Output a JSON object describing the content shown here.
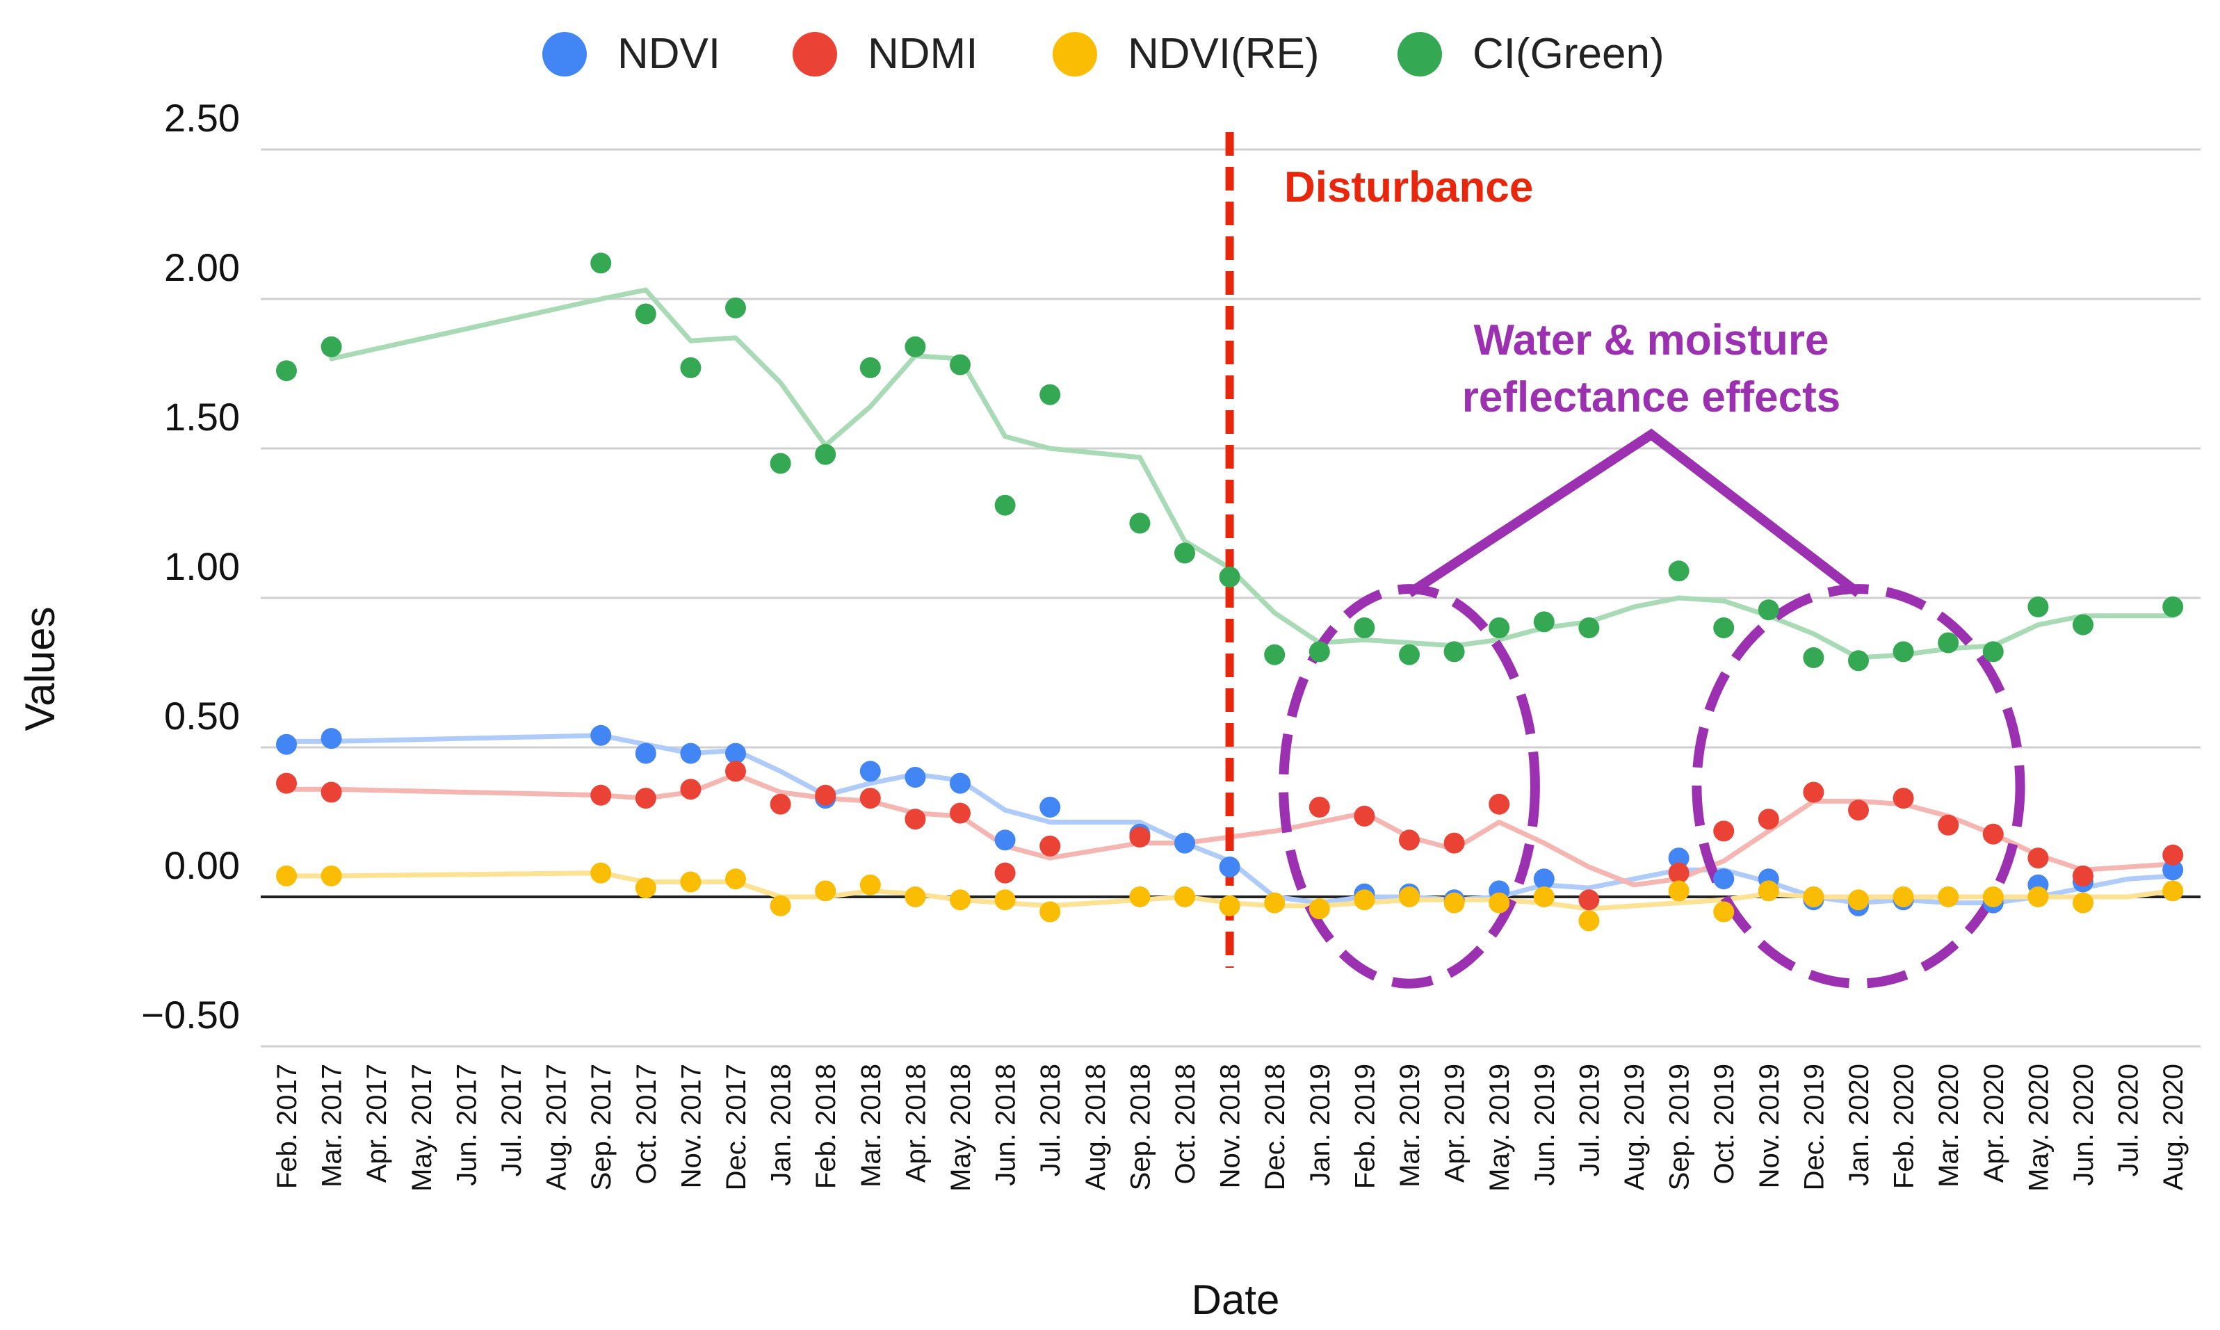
{
  "chart_data": {
    "type": "scatter",
    "xlabel": "Date",
    "ylabel": "Values",
    "ylim": [
      -0.5,
      2.5
    ],
    "yticks": [
      "2.50",
      "2.00",
      "1.50",
      "1.00",
      "0.50",
      "0.00",
      "−0.50"
    ],
    "grid": true,
    "legend_position": "top-center",
    "categories": [
      "Feb. 2017",
      "Mar. 2017",
      "Apr. 2017",
      "May. 2017",
      "Jun. 2017",
      "Jul. 2017",
      "Aug. 2017",
      "Sep. 2017",
      "Oct. 2017",
      "Nov. 2017",
      "Dec. 2017",
      "Jan. 2018",
      "Feb. 2018",
      "Mar. 2018",
      "Apr. 2018",
      "May. 2018",
      "Jun. 2018",
      "Jul. 2018",
      "Aug. 2018",
      "Sep. 2018",
      "Oct. 2018",
      "Nov. 2018",
      "Dec. 2018",
      "Jan. 2019",
      "Feb. 2019",
      "Mar. 2019",
      "Apr. 2019",
      "May. 2019",
      "Jun. 2019",
      "Jul. 2019",
      "Aug. 2019",
      "Sep. 2019",
      "Oct. 2019",
      "Nov. 2019",
      "Dec. 2019",
      "Jan. 2020",
      "Feb. 2020",
      "Mar. 2020",
      "Apr. 2020",
      "May. 2020",
      "Jun. 2020",
      "Jul. 2020",
      "Aug. 2020"
    ],
    "series": [
      {
        "name": "NDVI",
        "color": "#4285f4",
        "line_color": "#aecbfa",
        "points": [
          [
            0,
            0.51
          ],
          [
            1,
            0.53
          ],
          [
            7,
            0.54
          ],
          [
            8,
            0.48
          ],
          [
            9,
            0.48
          ],
          [
            10,
            0.48
          ],
          [
            12,
            0.33
          ],
          [
            13,
            0.42
          ],
          [
            14,
            0.4
          ],
          [
            15,
            0.38
          ],
          [
            16,
            0.19
          ],
          [
            17,
            0.3
          ],
          [
            19,
            0.21
          ],
          [
            20,
            0.18
          ],
          [
            21,
            0.1
          ],
          [
            24,
            0.01
          ],
          [
            25,
            0.01
          ],
          [
            26,
            -0.01
          ],
          [
            27,
            0.02
          ],
          [
            28,
            0.06
          ],
          [
            31,
            0.13
          ],
          [
            32,
            0.06
          ],
          [
            33,
            0.06
          ],
          [
            34,
            -0.01
          ],
          [
            35,
            -0.03
          ],
          [
            36,
            -0.01
          ],
          [
            38,
            -0.02
          ],
          [
            39,
            0.04
          ],
          [
            40,
            0.05
          ],
          [
            42,
            0.09
          ]
        ],
        "line": [
          [
            0,
            0.52
          ],
          [
            1,
            0.52
          ],
          [
            7,
            0.54
          ],
          [
            8,
            0.51
          ],
          [
            9,
            0.48
          ],
          [
            10,
            0.49
          ],
          [
            11,
            0.42
          ],
          [
            12,
            0.34
          ],
          [
            13,
            0.38
          ],
          [
            14,
            0.41
          ],
          [
            15,
            0.39
          ],
          [
            16,
            0.29
          ],
          [
            17,
            0.25
          ],
          [
            19,
            0.25
          ],
          [
            20,
            0.18
          ],
          [
            21,
            0.12
          ],
          [
            22,
            0.0
          ],
          [
            23,
            -0.02
          ],
          [
            24,
            0.0
          ],
          [
            25,
            0.0
          ],
          [
            26,
            -0.01
          ],
          [
            27,
            0.0
          ],
          [
            28,
            0.04
          ],
          [
            29,
            0.03
          ],
          [
            30,
            0.06
          ],
          [
            31,
            0.09
          ],
          [
            32,
            0.09
          ],
          [
            33,
            0.05
          ],
          [
            34,
            0.0
          ],
          [
            35,
            -0.02
          ],
          [
            36,
            -0.01
          ],
          [
            37,
            -0.02
          ],
          [
            38,
            -0.02
          ],
          [
            39,
            0.0
          ],
          [
            40,
            0.03
          ],
          [
            41,
            0.06
          ],
          [
            42,
            0.07
          ]
        ]
      },
      {
        "name": "NDMI",
        "color": "#ea4335",
        "line_color": "#f5b5b0",
        "points": [
          [
            0,
            0.38
          ],
          [
            1,
            0.35
          ],
          [
            7,
            0.34
          ],
          [
            8,
            0.33
          ],
          [
            9,
            0.36
          ],
          [
            10,
            0.42
          ],
          [
            11,
            0.31
          ],
          [
            12,
            0.34
          ],
          [
            13,
            0.33
          ],
          [
            14,
            0.26
          ],
          [
            15,
            0.28
          ],
          [
            16,
            0.08
          ],
          [
            17,
            0.17
          ],
          [
            19,
            0.2
          ],
          [
            23,
            0.3
          ],
          [
            24,
            0.27
          ],
          [
            25,
            0.19
          ],
          [
            26,
            0.18
          ],
          [
            27,
            0.31
          ],
          [
            29,
            -0.01
          ],
          [
            31,
            0.08
          ],
          [
            32,
            0.22
          ],
          [
            33,
            0.26
          ],
          [
            34,
            0.35
          ],
          [
            35,
            0.29
          ],
          [
            36,
            0.33
          ],
          [
            37,
            0.24
          ],
          [
            38,
            0.21
          ],
          [
            39,
            0.13
          ],
          [
            40,
            0.07
          ],
          [
            42,
            0.14
          ]
        ],
        "line": [
          [
            0,
            0.36
          ],
          [
            1,
            0.36
          ],
          [
            7,
            0.34
          ],
          [
            8,
            0.33
          ],
          [
            9,
            0.35
          ],
          [
            10,
            0.41
          ],
          [
            11,
            0.35
          ],
          [
            12,
            0.33
          ],
          [
            13,
            0.32
          ],
          [
            14,
            0.28
          ],
          [
            15,
            0.27
          ],
          [
            16,
            0.17
          ],
          [
            17,
            0.13
          ],
          [
            19,
            0.18
          ],
          [
            20,
            0.18
          ],
          [
            21,
            0.2
          ],
          [
            22,
            0.22
          ],
          [
            23,
            0.25
          ],
          [
            24,
            0.28
          ],
          [
            25,
            0.2
          ],
          [
            26,
            0.16
          ],
          [
            27,
            0.25
          ],
          [
            28,
            0.18
          ],
          [
            29,
            0.1
          ],
          [
            30,
            0.04
          ],
          [
            31,
            0.06
          ],
          [
            32,
            0.12
          ],
          [
            33,
            0.22
          ],
          [
            34,
            0.32
          ],
          [
            35,
            0.32
          ],
          [
            36,
            0.31
          ],
          [
            37,
            0.27
          ],
          [
            38,
            0.21
          ],
          [
            39,
            0.14
          ],
          [
            40,
            0.09
          ],
          [
            41,
            0.1
          ],
          [
            42,
            0.11
          ]
        ]
      },
      {
        "name": "NDVI(RE)",
        "color": "#fbbc04",
        "line_color": "#fde293",
        "points": [
          [
            0,
            0.07
          ],
          [
            1,
            0.07
          ],
          [
            7,
            0.08
          ],
          [
            8,
            0.03
          ],
          [
            9,
            0.05
          ],
          [
            10,
            0.06
          ],
          [
            11,
            -0.03
          ],
          [
            12,
            0.02
          ],
          [
            13,
            0.04
          ],
          [
            14,
            0.0
          ],
          [
            15,
            -0.01
          ],
          [
            16,
            -0.01
          ],
          [
            17,
            -0.05
          ],
          [
            19,
            0.0
          ],
          [
            20,
            0.0
          ],
          [
            21,
            -0.03
          ],
          [
            22,
            -0.02
          ],
          [
            23,
            -0.04
          ],
          [
            24,
            -0.01
          ],
          [
            25,
            0.0
          ],
          [
            26,
            -0.02
          ],
          [
            27,
            -0.02
          ],
          [
            28,
            0.0
          ],
          [
            29,
            -0.08
          ],
          [
            31,
            0.02
          ],
          [
            32,
            -0.05
          ],
          [
            33,
            0.02
          ],
          [
            34,
            0.0
          ],
          [
            35,
            -0.01
          ],
          [
            36,
            0.0
          ],
          [
            37,
            0.0
          ],
          [
            38,
            0.0
          ],
          [
            39,
            0.0
          ],
          [
            40,
            -0.02
          ],
          [
            42,
            0.02
          ]
        ],
        "line": [
          [
            0,
            0.07
          ],
          [
            1,
            0.07
          ],
          [
            7,
            0.08
          ],
          [
            8,
            0.05
          ],
          [
            9,
            0.05
          ],
          [
            10,
            0.05
          ],
          [
            11,
            0.0
          ],
          [
            12,
            0.0
          ],
          [
            13,
            0.02
          ],
          [
            14,
            0.01
          ],
          [
            15,
            -0.01
          ],
          [
            16,
            -0.02
          ],
          [
            17,
            -0.03
          ],
          [
            19,
            -0.01
          ],
          [
            20,
            0.0
          ],
          [
            21,
            -0.02
          ],
          [
            22,
            -0.03
          ],
          [
            23,
            -0.03
          ],
          [
            24,
            -0.02
          ],
          [
            25,
            -0.01
          ],
          [
            26,
            -0.01
          ],
          [
            27,
            -0.01
          ],
          [
            28,
            -0.02
          ],
          [
            29,
            -0.04
          ],
          [
            30,
            -0.03
          ],
          [
            31,
            -0.02
          ],
          [
            32,
            -0.01
          ],
          [
            33,
            0.01
          ],
          [
            34,
            0.0
          ],
          [
            35,
            0.0
          ],
          [
            36,
            0.0
          ],
          [
            37,
            0.0
          ],
          [
            38,
            0.0
          ],
          [
            39,
            0.0
          ],
          [
            40,
            0.0
          ],
          [
            41,
            0.0
          ],
          [
            42,
            0.02
          ]
        ]
      },
      {
        "name": "CI(Green)",
        "color": "#34a853",
        "line_color": "#a8dab5",
        "points": [
          [
            0,
            1.76
          ],
          [
            1,
            1.84
          ],
          [
            7,
            2.12
          ],
          [
            8,
            1.95
          ],
          [
            9,
            1.77
          ],
          [
            10,
            1.97
          ],
          [
            11,
            1.45
          ],
          [
            12,
            1.48
          ],
          [
            13,
            1.77
          ],
          [
            14,
            1.84
          ],
          [
            15,
            1.78
          ],
          [
            16,
            1.31
          ],
          [
            17,
            1.68
          ],
          [
            19,
            1.25
          ],
          [
            20,
            1.15
          ],
          [
            21,
            1.07
          ],
          [
            22,
            0.81
          ],
          [
            23,
            0.82
          ],
          [
            24,
            0.9
          ],
          [
            25,
            0.81
          ],
          [
            26,
            0.82
          ],
          [
            27,
            0.9
          ],
          [
            28,
            0.92
          ],
          [
            29,
            0.9
          ],
          [
            31,
            1.09
          ],
          [
            32,
            0.9
          ],
          [
            33,
            0.96
          ],
          [
            34,
            0.8
          ],
          [
            35,
            0.79
          ],
          [
            36,
            0.82
          ],
          [
            37,
            0.85
          ],
          [
            38,
            0.82
          ],
          [
            39,
            0.97
          ],
          [
            40,
            0.91
          ],
          [
            42,
            0.97
          ]
        ],
        "line": [
          [
            1,
            1.8
          ],
          [
            7,
            2.0
          ],
          [
            8,
            2.03
          ],
          [
            9,
            1.86
          ],
          [
            10,
            1.87
          ],
          [
            11,
            1.72
          ],
          [
            12,
            1.51
          ],
          [
            13,
            1.64
          ],
          [
            14,
            1.81
          ],
          [
            15,
            1.8
          ],
          [
            16,
            1.54
          ],
          [
            17,
            1.5
          ],
          [
            19,
            1.47
          ],
          [
            20,
            1.19
          ],
          [
            21,
            1.1
          ],
          [
            22,
            0.95
          ],
          [
            23,
            0.85
          ],
          [
            24,
            0.86
          ],
          [
            25,
            0.85
          ],
          [
            26,
            0.84
          ],
          [
            27,
            0.86
          ],
          [
            28,
            0.9
          ],
          [
            29,
            0.92
          ],
          [
            30,
            0.97
          ],
          [
            31,
            1.0
          ],
          [
            32,
            0.99
          ],
          [
            33,
            0.94
          ],
          [
            34,
            0.88
          ],
          [
            35,
            0.8
          ],
          [
            36,
            0.81
          ],
          [
            37,
            0.83
          ],
          [
            38,
            0.84
          ],
          [
            39,
            0.91
          ],
          [
            40,
            0.94
          ],
          [
            41,
            0.94
          ],
          [
            42,
            0.94
          ]
        ]
      }
    ],
    "annotations": {
      "disturbance": {
        "label": "Disturbance",
        "x_index": 21,
        "color": "#e8260c"
      },
      "water_effects": {
        "line1": "Water & moisture",
        "line2": "reflectance effects",
        "color": "#9b30b0"
      },
      "ellipses": [
        {
          "x_center_index": 25,
          "y_center": 0.37,
          "x_radius_months": 2.8,
          "y_radius": 0.66
        },
        {
          "x_center_index": 35,
          "y_center": 0.37,
          "x_radius_months": 3.6,
          "y_radius": 0.66
        }
      ]
    }
  }
}
